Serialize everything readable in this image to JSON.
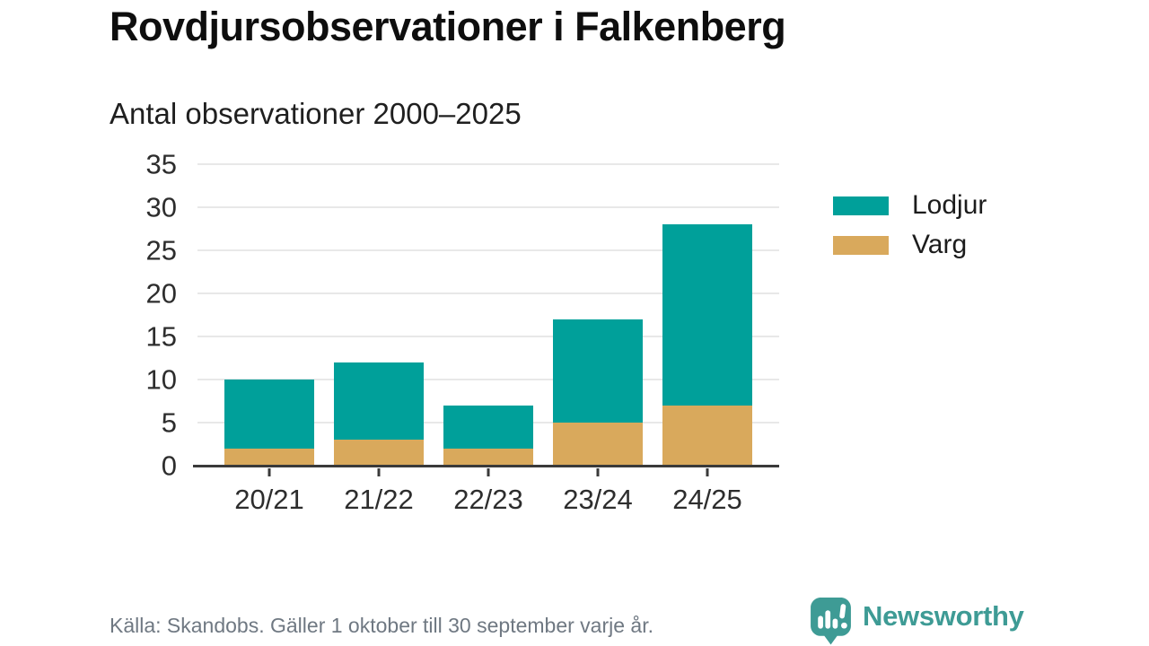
{
  "chart_data": {
    "type": "bar",
    "stacked": true,
    "title": "Rovdjursobservationer i Falkenberg",
    "subtitle": "Antal observationer 2000–2025",
    "categories": [
      "20/21",
      "21/22",
      "22/23",
      "23/24",
      "24/25"
    ],
    "series": [
      {
        "name": "Lodjur",
        "color": "#00A09A",
        "values": [
          8,
          9,
          5,
          12,
          21
        ]
      },
      {
        "name": "Varg",
        "color": "#D9A95C",
        "values": [
          2,
          3,
          2,
          5,
          7
        ]
      }
    ],
    "stack_bottom_to_top": [
      "Varg",
      "Lodjur"
    ],
    "stacked_totals": [
      10,
      12,
      7,
      17,
      28
    ],
    "ylim": [
      0,
      35
    ],
    "yticks": [
      0,
      5,
      10,
      15,
      20,
      25,
      30,
      35
    ],
    "grid": true,
    "legend_position": "right",
    "colors": {
      "grid": "#E8E8E8",
      "axis": "#3A3A3A",
      "tick_label": "#2D2D2D"
    }
  },
  "footer": {
    "source": "Källa: Skandobs. Gäller 1 oktober till 30 september varje år."
  },
  "branding": {
    "wordmark": "Newsworthy",
    "logo_icon": "speech-bubble-bar-chart-exclamation-icon",
    "color": "#3E9B95"
  }
}
